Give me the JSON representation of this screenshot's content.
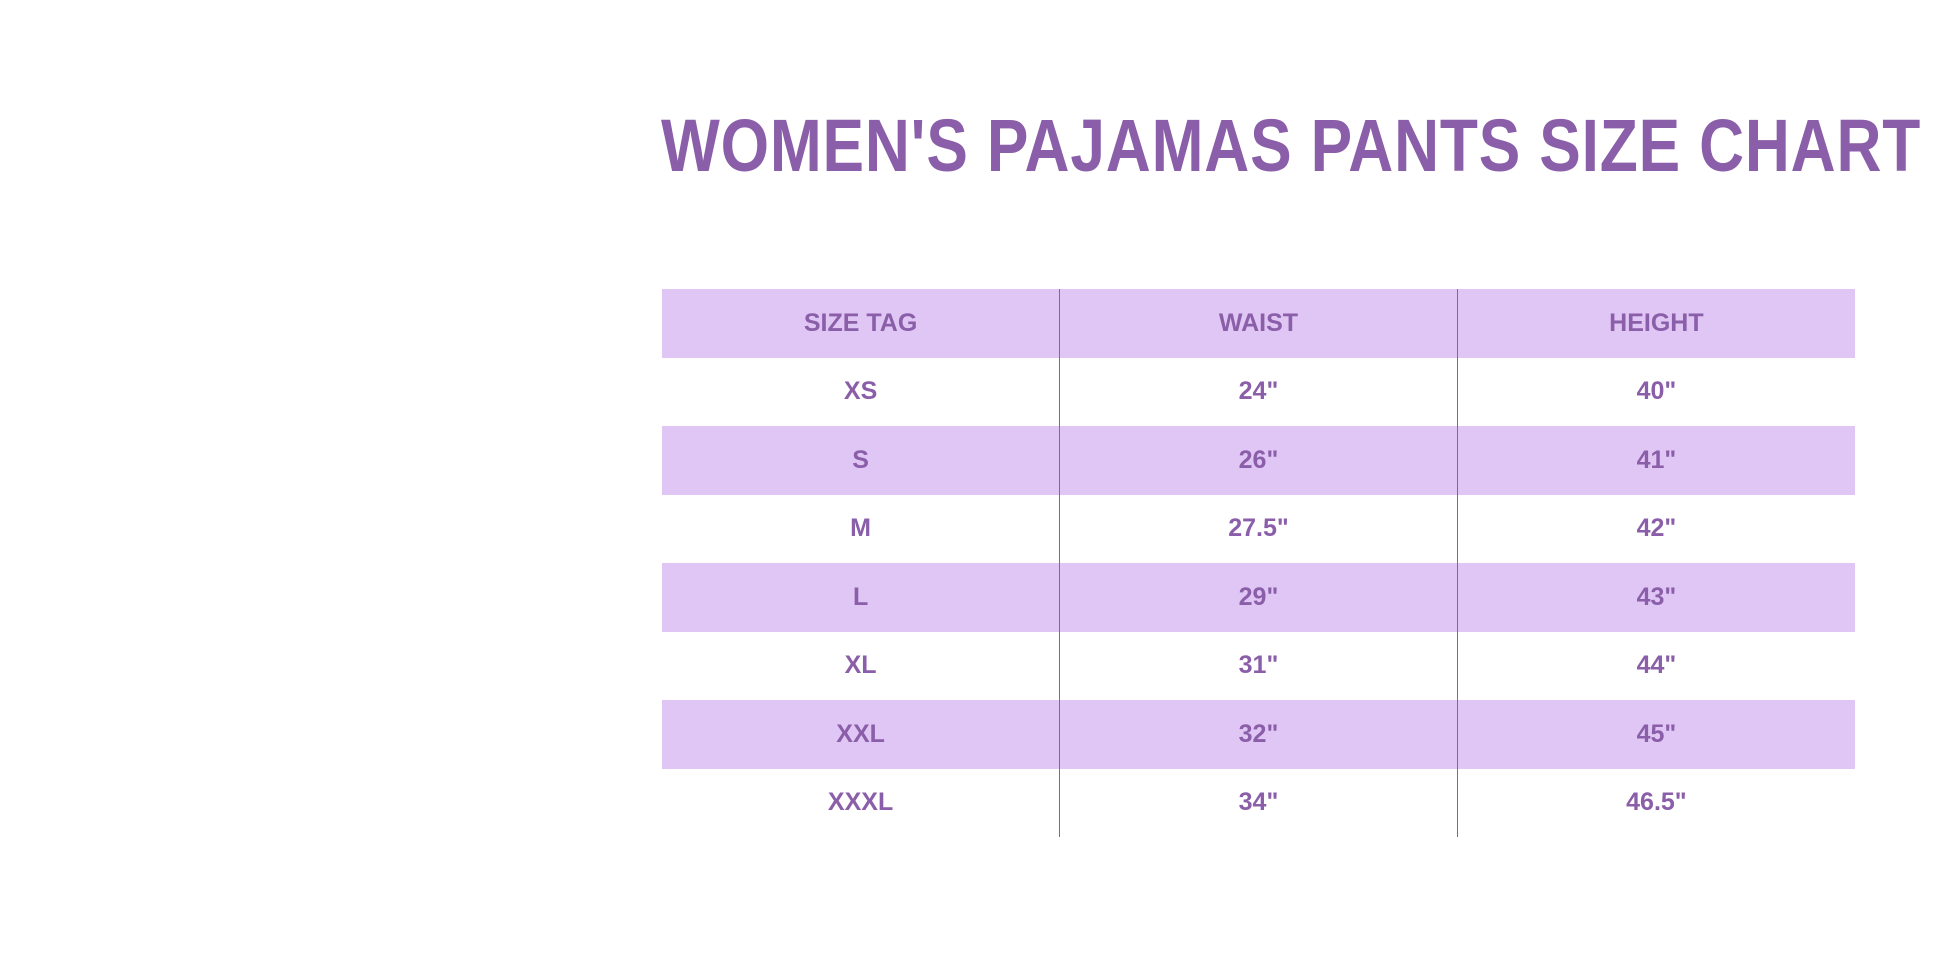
{
  "title": "WOMEN'S PAJAMAS PANTS SIZE CHART",
  "colors": {
    "text": "#8a5ea8",
    "row_shade": "#e0c6f4",
    "background": "#ffffff"
  },
  "table": {
    "headers": [
      "SIZE TAG",
      "WAIST",
      "HEIGHT"
    ],
    "rows": [
      [
        "XS",
        "24\"",
        "40\""
      ],
      [
        "S",
        "26\"",
        "41\""
      ],
      [
        "M",
        "27.5\"",
        "42\""
      ],
      [
        "L",
        "29\"",
        "43\""
      ],
      [
        "XL",
        "31\"",
        "44\""
      ],
      [
        "XXL",
        "32\"",
        "45\""
      ],
      [
        "XXXL",
        "34\"",
        "46.5\""
      ]
    ]
  }
}
